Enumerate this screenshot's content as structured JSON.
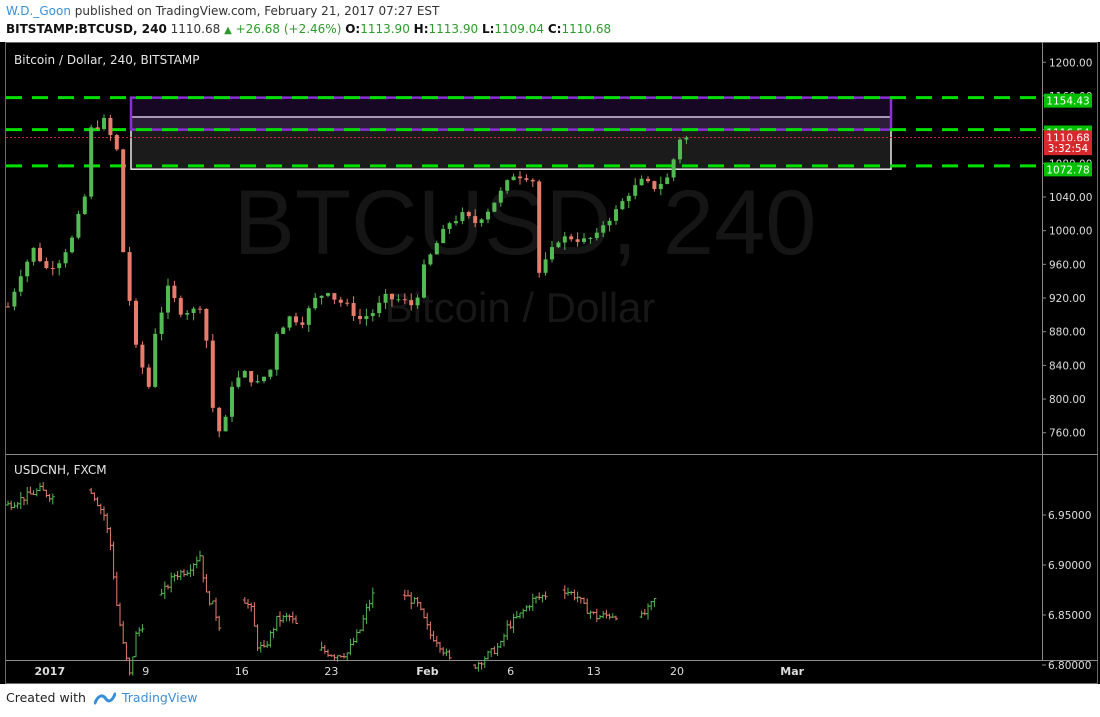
{
  "header": {
    "author": "W.D._Goon",
    "published": "published on TradingView.com, February 21, 2017 07:27 EST",
    "symbol": "BITSTAMP:BTCUSD, 240",
    "last": "1110.68",
    "change": "+26.68 (+2.46%)",
    "o_label": "O:",
    "o_value": "1113.90",
    "h_label": "H:",
    "h_value": "1113.90",
    "l_label": "L:",
    "l_value": "1109.04",
    "c_label": "C:",
    "c_value": "1110.68"
  },
  "footer": {
    "created_with": "Created with",
    "brand": "TradingView"
  },
  "colors": {
    "background": "#000000",
    "up": "#53b953",
    "down": "#e77c6d",
    "support_resistance": "#00e000",
    "zone_purple": "#8b2fd6",
    "price_tag": "#d7282d"
  },
  "chart_data": [
    {
      "type": "candlestick",
      "title": "Bitcoin / Dollar, 240, BITSTAMP",
      "watermark": "BTCUSD, 240",
      "watermark_sub": "Bitcoin / Dollar",
      "ylim": [
        730,
        1225
      ],
      "y_ticks": [
        "1200.00",
        "1160.00",
        "1120.00",
        "1080.00",
        "1040.00",
        "1000.00",
        "960.00",
        "920.00",
        "880.00",
        "840.00",
        "800.00",
        "760.00"
      ],
      "anchors": [
        [
          0,
          910
        ],
        [
          2,
          950
        ],
        [
          4,
          978
        ],
        [
          6,
          955
        ],
        [
          8,
          965
        ],
        [
          10,
          990
        ],
        [
          12,
          1040
        ],
        [
          13,
          1120
        ],
        [
          15,
          1130
        ],
        [
          17,
          1095
        ],
        [
          18,
          975
        ],
        [
          20,
          860
        ],
        [
          22,
          815
        ],
        [
          23,
          880
        ],
        [
          25,
          930
        ],
        [
          27,
          905
        ],
        [
          29,
          905
        ],
        [
          30,
          912
        ],
        [
          31,
          870
        ],
        [
          32,
          790
        ],
        [
          33,
          762
        ],
        [
          34,
          775
        ],
        [
          35,
          818
        ],
        [
          37,
          830
        ],
        [
          39,
          818
        ],
        [
          41,
          835
        ],
        [
          42,
          880
        ],
        [
          44,
          897
        ],
        [
          46,
          893
        ],
        [
          48,
          918
        ],
        [
          50,
          930
        ],
        [
          51,
          920
        ],
        [
          53,
          910
        ],
        [
          55,
          895
        ],
        [
          57,
          903
        ],
        [
          59,
          920
        ],
        [
          61,
          918
        ],
        [
          63,
          912
        ],
        [
          64,
          925
        ],
        [
          65,
          955
        ],
        [
          67,
          985
        ],
        [
          69,
          1010
        ],
        [
          71,
          1018
        ],
        [
          73,
          1010
        ],
        [
          75,
          1025
        ],
        [
          77,
          1045
        ],
        [
          79,
          1067
        ],
        [
          81,
          1065
        ],
        [
          82,
          1060
        ],
        [
          83,
          950
        ],
        [
          84,
          962
        ],
        [
          86,
          990
        ],
        [
          88,
          992
        ],
        [
          90,
          988
        ],
        [
          92,
          993
        ],
        [
          93,
          1008
        ],
        [
          95,
          1023
        ],
        [
          97,
          1045
        ],
        [
          99,
          1058
        ],
        [
          101,
          1052
        ],
        [
          103,
          1062
        ],
        [
          104,
          1085
        ],
        [
          105,
          1110
        ]
      ],
      "levels": [
        {
          "label": "1154.43",
          "value": 1154.43,
          "tag_color": "#00c000"
        },
        {
          "label": "1116.54",
          "value": 1116.54,
          "tag_color": "#00c000"
        },
        {
          "label": "1110.68",
          "value": 1110.68,
          "tag_color": "#d7282d"
        },
        {
          "label": "3:32:54",
          "value": 1098,
          "tag_color": "#d7282d"
        },
        {
          "label": "1072.78",
          "value": 1072.78,
          "tag_color": "#00c000"
        }
      ],
      "zone_purple": [
        1120,
        1158
      ],
      "zone_gray": [
        1073,
        1135
      ],
      "hlines": [
        1158,
        1120,
        1077
      ]
    },
    {
      "type": "ohlc",
      "title": "USDCNH, FXCM",
      "ylim": [
        6.765,
        6.995
      ],
      "y_ticks": [
        "6.95000",
        "6.90000",
        "6.85000",
        "6.80000"
      ],
      "segments": [
        [
          [
            0,
            6.96
          ],
          [
            5,
            6.975
          ],
          [
            7,
            6.968
          ]
        ],
        [
          [
            13,
            6.975
          ],
          [
            15,
            6.95
          ],
          [
            16,
            6.92
          ],
          [
            17,
            6.86
          ],
          [
            18,
            6.82
          ],
          [
            19,
            6.79
          ],
          [
            20,
            6.83
          ],
          [
            21,
            6.84
          ]
        ],
        [
          [
            24,
            6.87
          ],
          [
            26,
            6.89
          ],
          [
            28,
            6.895
          ],
          [
            30,
            6.91
          ],
          [
            31,
            6.87
          ],
          [
            32,
            6.86
          ],
          [
            33,
            6.84
          ]
        ],
        [
          [
            37,
            6.865
          ],
          [
            38,
            6.855
          ],
          [
            39,
            6.82
          ],
          [
            40,
            6.815
          ],
          [
            42,
            6.845
          ],
          [
            44,
            6.848
          ],
          [
            45,
            6.84
          ]
        ],
        [
          [
            49,
            6.815
          ],
          [
            51,
            6.81
          ],
          [
            53,
            6.812
          ],
          [
            55,
            6.835
          ],
          [
            56,
            6.855
          ],
          [
            57,
            6.87
          ]
        ],
        [
          [
            62,
            6.87
          ],
          [
            64,
            6.86
          ],
          [
            65,
            6.845
          ],
          [
            66,
            6.83
          ],
          [
            67,
            6.825
          ],
          [
            68,
            6.815
          ],
          [
            69,
            6.805
          ]
        ],
        [
          [
            73,
            6.8
          ],
          [
            75,
            6.81
          ],
          [
            77,
            6.82
          ],
          [
            78,
            6.838
          ],
          [
            80,
            6.85
          ],
          [
            82,
            6.865
          ],
          [
            84,
            6.87
          ]
        ],
        [
          [
            87,
            6.875
          ],
          [
            89,
            6.868
          ],
          [
            90,
            6.858
          ],
          [
            92,
            6.848
          ],
          [
            94,
            6.85
          ],
          [
            95,
            6.85
          ]
        ],
        [
          [
            99,
            6.848
          ],
          [
            100,
            6.855
          ],
          [
            101,
            6.865
          ]
        ]
      ]
    }
  ],
  "x_axis": {
    "labels": [
      {
        "label": "2017",
        "bold": true,
        "i": 7
      },
      {
        "label": "9",
        "bold": false,
        "i": 22
      },
      {
        "label": "16",
        "bold": false,
        "i": 37
      },
      {
        "label": "23",
        "bold": false,
        "i": 51
      },
      {
        "label": "Feb",
        "bold": true,
        "i": 66
      },
      {
        "label": "6",
        "bold": false,
        "i": 79
      },
      {
        "label": "13",
        "bold": false,
        "i": 92
      },
      {
        "label": "20",
        "bold": false,
        "i": 105
      },
      {
        "label": "Mar",
        "bold": true,
        "i": 123
      }
    ]
  }
}
